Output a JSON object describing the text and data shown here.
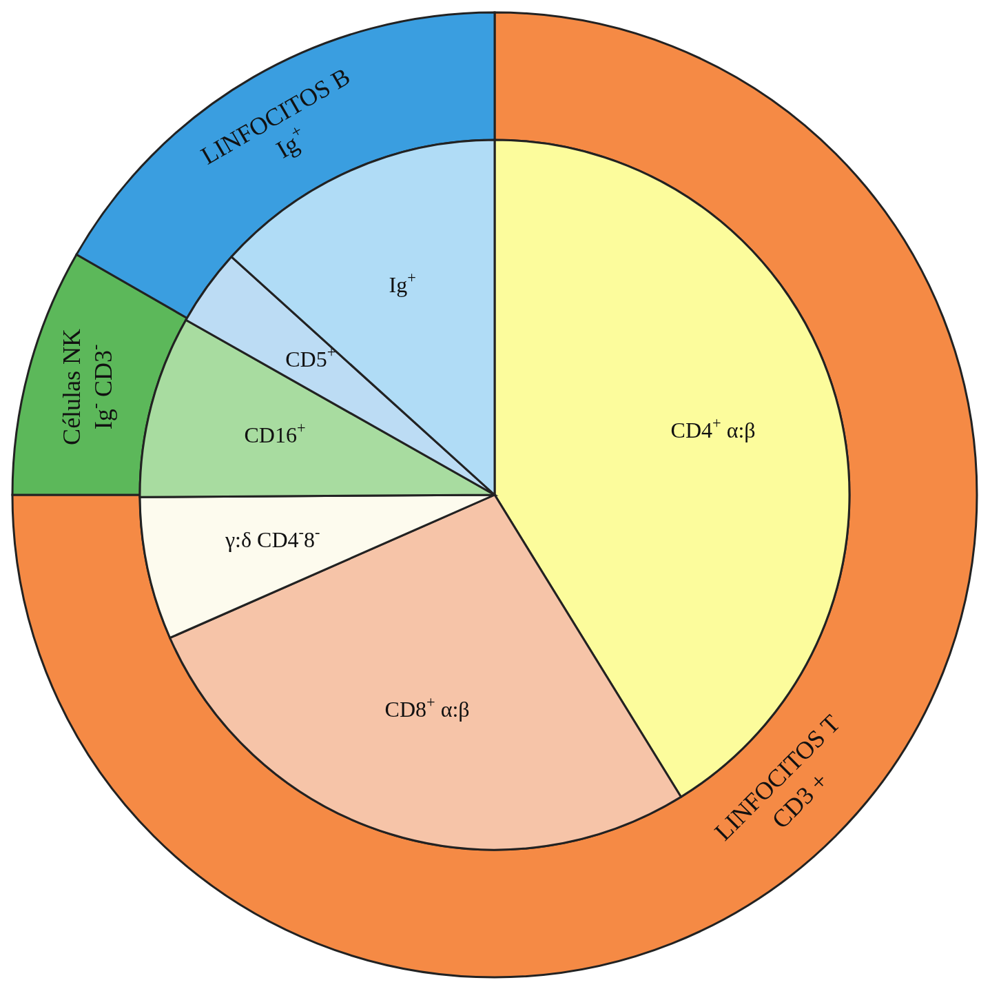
{
  "chart_data": [
    {
      "type": "pie",
      "legend": false,
      "categories": [
        "CD4$^{+}$  α:β",
        "CD8$^{+}$  α:β",
        "γ:δ CD4$^{-}$8$^{-}$",
        "CD16$^{+}$",
        "CD5$^{+}$",
        "Ig$^{+}$"
      ],
      "values": [
        41.2,
        27.2,
        6.5,
        8.3,
        3.5,
        13.3
      ],
      "colors": [
        "#fcfc9c",
        "#f6c4a8",
        "#fdfbee",
        "#a8dca0",
        "#bcdcf4",
        "#b0dcf6"
      ]
    },
    {
      "type": "donut",
      "legend": false,
      "categories": [
        "LINFOCITOS T\nCD3 +",
        "Células NK\nIg$^{-}$ CD3$^{-}$",
        "LINFOCITOS B\nIg$^{+}$"
      ],
      "values": [
        75,
        8.3,
        16.7
      ],
      "colors": [
        "#f58a45",
        "#5cb85a",
        "#3a9ee0"
      ]
    }
  ]
}
